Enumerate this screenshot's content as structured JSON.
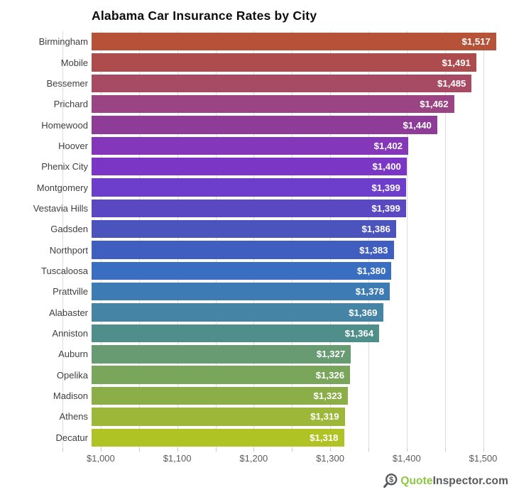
{
  "title": "Alabama Car Insurance Rates by City",
  "chart_data": {
    "type": "bar",
    "orientation": "horizontal",
    "title": "Alabama Car Insurance Rates by City",
    "categories": [
      "Birmingham",
      "Mobile",
      "Bessemer",
      "Prichard",
      "Homewood",
      "Hoover",
      "Phenix City",
      "Montgomery",
      "Vestavia Hills",
      "Gadsden",
      "Northport",
      "Tuscaloosa",
      "Prattville",
      "Alabaster",
      "Anniston",
      "Auburn",
      "Opelika",
      "Madison",
      "Athens",
      "Decatur"
    ],
    "values": [
      1517,
      1491,
      1485,
      1462,
      1440,
      1402,
      1400,
      1399,
      1399,
      1386,
      1383,
      1380,
      1378,
      1369,
      1364,
      1327,
      1326,
      1323,
      1319,
      1318
    ],
    "value_labels": [
      "$1,517",
      "$1,491",
      "$1,485",
      "$1,462",
      "$1,440",
      "$1,402",
      "$1,400",
      "$1,399",
      "$1,399",
      "$1,386",
      "$1,383",
      "$1,380",
      "$1,378",
      "$1,369",
      "$1,364",
      "$1,327",
      "$1,326",
      "$1,323",
      "$1,319",
      "$1,318"
    ],
    "bar_colors": [
      "#b55238",
      "#ae4c4d",
      "#a74a63",
      "#9b4483",
      "#8e3c98",
      "#8437b8",
      "#7b36c6",
      "#6c3ecb",
      "#5948c2",
      "#4b53bd",
      "#3f5ec0",
      "#3a6ec1",
      "#3d7bb4",
      "#4584a4",
      "#4f8e8b",
      "#699b72",
      "#7aa65b",
      "#8bae48",
      "#9cb739",
      "#b0c324"
    ],
    "xlabel": "",
    "ylabel": "",
    "xlim": [
      988,
      1529
    ],
    "x_tick_labels": [
      "$1,000",
      "$1,100",
      "$1,200",
      "$1,300",
      "$1,400",
      "$1,500"
    ],
    "x_tick_values": [
      1000,
      1100,
      1200,
      1300,
      1400,
      1500
    ],
    "gridline_values": [
      950,
      1000,
      1050,
      1100,
      1150,
      1200,
      1250,
      1300,
      1350,
      1400,
      1450,
      1500
    ],
    "grid": true,
    "legend": false,
    "value_label_color": "#ffffff",
    "grid_color": "#dcdcdc"
  },
  "watermark": {
    "icon": "magnifier-dollar-icon",
    "brand_primary": "Quote",
    "brand_secondary": "Inspector.com",
    "primary_color": "#8dc63f",
    "secondary_color": "#58595b"
  }
}
